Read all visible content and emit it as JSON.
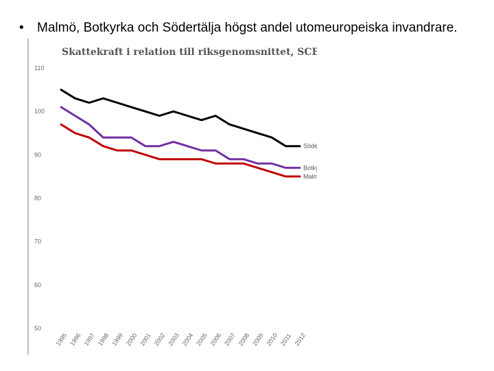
{
  "slide": {
    "bullet_symbol": "•",
    "bullet_text": "Malmö, Botkyrka och Södertälja högst andel utomeuropeiska invandrare."
  },
  "chart_data": {
    "type": "line",
    "title": "Skattekraft i relation till riksgenomsnittet, SCB",
    "xlabel": "",
    "ylabel": "",
    "ylim": [
      50,
      110
    ],
    "yticks": [
      "110",
      "100",
      "90",
      "80",
      "70",
      "60",
      "50"
    ],
    "categories": [
      "1995",
      "1996",
      "1997",
      "1998",
      "1999",
      "2000",
      "2001",
      "2002",
      "2003",
      "2004",
      "2005",
      "2006",
      "2007",
      "2008",
      "2009",
      "2010",
      "2011",
      "2012"
    ],
    "grid": false,
    "legend": "none (series labels at line ends)",
    "series": [
      {
        "name": "Södertälje",
        "color": "#000000",
        "values": [
          105,
          103,
          102,
          103,
          102,
          101,
          100,
          99,
          100,
          99,
          98,
          99,
          97,
          96,
          95,
          94,
          92,
          92
        ]
      },
      {
        "name": "Botkyrka",
        "color": "#7030a0",
        "values": [
          101,
          99,
          97,
          94,
          94,
          94,
          92,
          92,
          93,
          92,
          91,
          91,
          89,
          89,
          88,
          88,
          87,
          87
        ]
      },
      {
        "name": "Malmö",
        "color": "#c00000",
        "values": [
          97,
          95,
          94,
          92,
          91,
          91,
          90,
          89,
          89,
          89,
          89,
          88,
          88,
          88,
          87,
          86,
          85,
          85
        ]
      }
    ]
  }
}
